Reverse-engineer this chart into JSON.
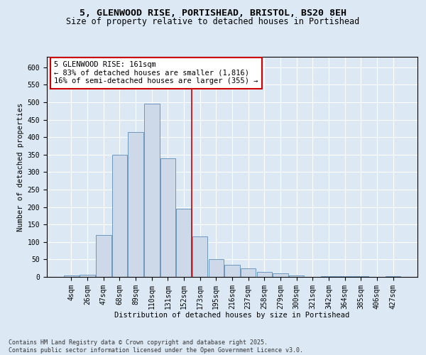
{
  "title_line1": "5, GLENWOOD RISE, PORTISHEAD, BRISTOL, BS20 8EH",
  "title_line2": "Size of property relative to detached houses in Portishead",
  "xlabel": "Distribution of detached houses by size in Portishead",
  "ylabel": "Number of detached properties",
  "footer_line1": "Contains HM Land Registry data © Crown copyright and database right 2025.",
  "footer_line2": "Contains public sector information licensed under the Open Government Licence v3.0.",
  "categories": [
    "4sqm",
    "26sqm",
    "47sqm",
    "68sqm",
    "89sqm",
    "110sqm",
    "131sqm",
    "152sqm",
    "173sqm",
    "195sqm",
    "216sqm",
    "237sqm",
    "258sqm",
    "279sqm",
    "300sqm",
    "321sqm",
    "342sqm",
    "364sqm",
    "385sqm",
    "406sqm",
    "427sqm"
  ],
  "values": [
    4,
    6,
    120,
    350,
    415,
    495,
    340,
    195,
    115,
    50,
    35,
    25,
    15,
    10,
    5,
    1,
    3,
    2,
    2,
    1,
    2
  ],
  "bar_color": "#cdd9e8",
  "bar_edge_color": "#5b8db8",
  "annotation_box_text": "5 GLENWOOD RISE: 161sqm\n← 83% of detached houses are smaller (1,816)\n16% of semi-detached houses are larger (355) →",
  "annotation_box_color": "#ffffff",
  "annotation_box_edge_color": "#cc0000",
  "vline_x_index": 7.5,
  "vline_color": "#cc0000",
  "ylim": [
    0,
    630
  ],
  "yticks": [
    0,
    50,
    100,
    150,
    200,
    250,
    300,
    350,
    400,
    450,
    500,
    550,
    600
  ],
  "bg_color": "#dce9f5",
  "plot_bg_color": "#dce9f5",
  "title_fontsize": 9.5,
  "subtitle_fontsize": 8.5,
  "axis_label_fontsize": 7.5,
  "tick_fontsize": 7,
  "annotation_fontsize": 7.5,
  "footer_fontsize": 6
}
